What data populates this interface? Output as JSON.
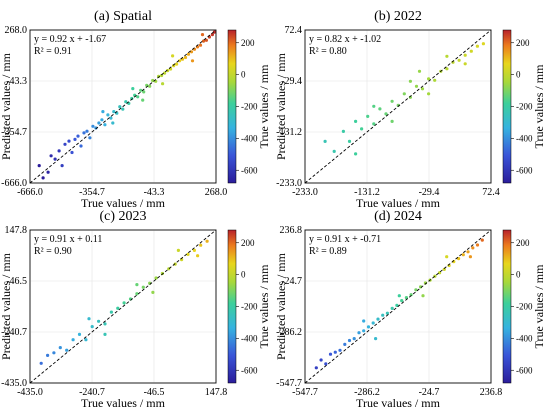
{
  "figure": {
    "panels": [
      {
        "title": "(a)  Spatial",
        "equation": "y = 0.92 x + -1.67",
        "r2": "R² = 0.91",
        "xlabel": "True values / mm",
        "ylabel": "Predicted values / mm",
        "colorbar_label": "True values / mm",
        "xticks": [
          "-666.0",
          "-354.7",
          "-43.3",
          "268.0"
        ],
        "yticks": [
          "268.0",
          "-43.3",
          "-354.7",
          "-666.0"
        ],
        "cbar_ticks": [
          "200",
          "0",
          "-200",
          "-400",
          "-600"
        ]
      },
      {
        "title": "(b)  2022",
        "equation": "y = 0.82 x + -1.02",
        "r2": "R² = 0.80",
        "xlabel": "True values / mm",
        "ylabel": "Predicted values / mm",
        "colorbar_label": "True values / mm",
        "xticks": [
          "-233.0",
          "-131.2",
          "-29.4",
          "72.4"
        ],
        "yticks": [
          "72.4",
          "-29.4",
          "-131.2",
          "-233.0"
        ],
        "cbar_ticks": [
          "200",
          "0",
          "-200",
          "-400",
          "-600"
        ]
      },
      {
        "title": "(c)  2023",
        "equation": "y = 0.91 x + 0.11",
        "r2": "R² = 0.90",
        "xlabel": "True values / mm",
        "ylabel": "Predicted values / mm",
        "colorbar_label": "True values / mm",
        "xticks": [
          "-435.0",
          "-240.7",
          "-46.5",
          "147.8"
        ],
        "yticks": [
          "147.8",
          "-46.5",
          "-240.7",
          "-435.0"
        ],
        "cbar_ticks": [
          "200",
          "0",
          "-200",
          "-400",
          "-600"
        ]
      },
      {
        "title": "(d)  2024",
        "equation": "y = 0.91 x + -0.71",
        "r2": "R² = 0.89",
        "xlabel": "True values / mm",
        "ylabel": "Predicted values / mm",
        "colorbar_label": "True values / mm",
        "xticks": [
          "-547.7",
          "-286.2",
          "-24.7",
          "236.8"
        ],
        "yticks": [
          "236.8",
          "-24.7",
          "-286.2",
          "-547.7"
        ],
        "cbar_ticks": [
          "200",
          "0",
          "-200",
          "-400",
          "-600"
        ]
      }
    ]
  },
  "chart_data": [
    {
      "type": "scatter",
      "title": "(a)  Spatial",
      "xlabel": "True values / mm",
      "ylabel": "Predicted values / mm",
      "xlim": [
        -666.0,
        268.0
      ],
      "ylim": [
        -666.0,
        268.0
      ],
      "slope": 0.92,
      "intercept": -1.67,
      "r2": 0.91,
      "points": [
        [
          -620,
          -560
        ],
        [
          -600,
          -635
        ],
        [
          -575,
          -600
        ],
        [
          -560,
          -500
        ],
        [
          -540,
          -520
        ],
        [
          -520,
          -470
        ],
        [
          -505,
          -560
        ],
        [
          -490,
          -430
        ],
        [
          -470,
          -410
        ],
        [
          -455,
          -480
        ],
        [
          -440,
          -400
        ],
        [
          -425,
          -380
        ],
        [
          -410,
          -440
        ],
        [
          -395,
          -360
        ],
        [
          -380,
          -350
        ],
        [
          -365,
          -390
        ],
        [
          -350,
          -320
        ],
        [
          -335,
          -330
        ],
        [
          -320,
          -300
        ],
        [
          -305,
          -280
        ],
        [
          -290,
          -310
        ],
        [
          -275,
          -250
        ],
        [
          -260,
          -270
        ],
        [
          -245,
          -230
        ],
        [
          -230,
          -240
        ],
        [
          -215,
          -200
        ],
        [
          -200,
          -215
        ],
        [
          -185,
          -170
        ],
        [
          -170,
          -180
        ],
        [
          -155,
          -150
        ],
        [
          -140,
          -130
        ],
        [
          -125,
          -140
        ],
        [
          -110,
          -100
        ],
        [
          -95,
          -110
        ],
        [
          -80,
          -70
        ],
        [
          -65,
          -75
        ],
        [
          -50,
          -40
        ],
        [
          -35,
          -45
        ],
        [
          -20,
          -15
        ],
        [
          -5,
          -10
        ],
        [
          10,
          5
        ],
        [
          25,
          20
        ],
        [
          40,
          30
        ],
        [
          55,
          50
        ],
        [
          70,
          60
        ],
        [
          85,
          80
        ],
        [
          100,
          90
        ],
        [
          115,
          100
        ],
        [
          130,
          120
        ],
        [
          145,
          135
        ],
        [
          160,
          150
        ],
        [
          175,
          165
        ],
        [
          190,
          175
        ],
        [
          205,
          200
        ],
        [
          220,
          205
        ],
        [
          235,
          225
        ],
        [
          250,
          240
        ],
        [
          260,
          255
        ],
        [
          -300,
          -230
        ],
        [
          -250,
          -300
        ],
        [
          -150,
          -90
        ],
        [
          -100,
          -160
        ],
        [
          0,
          -60
        ],
        [
          50,
          110
        ],
        [
          150,
          80
        ],
        [
          200,
          240
        ]
      ],
      "colorbar": {
        "label": "True values / mm",
        "ticks": [
          200,
          0,
          -200,
          -400,
          -600
        ]
      }
    },
    {
      "type": "scatter",
      "title": "(b)  2022",
      "xlabel": "True values / mm",
      "ylabel": "Predicted values / mm",
      "xlim": [
        -233.0,
        72.4
      ],
      "ylim": [
        -233.0,
        72.4
      ],
      "slope": 0.82,
      "intercept": -1.02,
      "r2": 0.8,
      "points": [
        [
          -200,
          -150
        ],
        [
          -185,
          -170
        ],
        [
          -170,
          -130
        ],
        [
          -160,
          -150
        ],
        [
          -150,
          -110
        ],
        [
          -140,
          -125
        ],
        [
          -130,
          -100
        ],
        [
          -120,
          -115
        ],
        [
          -110,
          -85
        ],
        [
          -100,
          -95
        ],
        [
          -90,
          -70
        ],
        [
          -80,
          -78
        ],
        [
          -70,
          -55
        ],
        [
          -60,
          -62
        ],
        [
          -50,
          -40
        ],
        [
          -40,
          -45
        ],
        [
          -30,
          -25
        ],
        [
          -20,
          -28
        ],
        [
          -10,
          -10
        ],
        [
          0,
          -5
        ],
        [
          10,
          8
        ],
        [
          20,
          12
        ],
        [
          30,
          22
        ],
        [
          40,
          30
        ],
        [
          50,
          40
        ],
        [
          60,
          45
        ],
        [
          -120,
          -80
        ],
        [
          -90,
          -110
        ],
        [
          -60,
          -30
        ],
        [
          -30,
          -55
        ],
        [
          0,
          20
        ],
        [
          30,
          5
        ],
        [
          -150,
          -175
        ],
        [
          -45,
          -10
        ]
      ],
      "colorbar": {
        "label": "True values / mm",
        "ticks": [
          200,
          0,
          -200,
          -400,
          -600
        ]
      }
    },
    {
      "type": "scatter",
      "title": "(c)  2023",
      "xlabel": "True values / mm",
      "ylabel": "Predicted values / mm",
      "xlim": [
        -435.0,
        147.8
      ],
      "ylim": [
        -435.0,
        147.8
      ],
      "slope": 0.91,
      "intercept": 0.11,
      "r2": 0.9,
      "points": [
        [
          -400,
          -360
        ],
        [
          -380,
          -330
        ],
        [
          -360,
          -320
        ],
        [
          -340,
          -300
        ],
        [
          -320,
          -310
        ],
        [
          -300,
          -270
        ],
        [
          -280,
          -250
        ],
        [
          -260,
          -270
        ],
        [
          -240,
          -220
        ],
        [
          -220,
          -200
        ],
        [
          -200,
          -210
        ],
        [
          -180,
          -165
        ],
        [
          -160,
          -150
        ],
        [
          -140,
          -130
        ],
        [
          -120,
          -115
        ],
        [
          -100,
          -95
        ],
        [
          -80,
          -70
        ],
        [
          -60,
          -55
        ],
        [
          -40,
          -35
        ],
        [
          -20,
          -18
        ],
        [
          0,
          0
        ],
        [
          20,
          18
        ],
        [
          40,
          35
        ],
        [
          60,
          55
        ],
        [
          80,
          70
        ],
        [
          100,
          90
        ],
        [
          120,
          105
        ],
        [
          -250,
          -190
        ],
        [
          -200,
          -250
        ],
        [
          -100,
          -60
        ],
        [
          -50,
          -90
        ],
        [
          30,
          70
        ],
        [
          90,
          50
        ]
      ],
      "colorbar": {
        "label": "True values / mm",
        "ticks": [
          200,
          0,
          -200,
          -400,
          -600
        ]
      }
    },
    {
      "type": "scatter",
      "title": "(d)  2024",
      "xlabel": "True values / mm",
      "ylabel": "Predicted values / mm",
      "xlim": [
        -547.7,
        236.8
      ],
      "ylim": [
        -547.7,
        236.8
      ],
      "slope": 0.91,
      "intercept": -0.71,
      "r2": 0.89,
      "points": [
        [
          -500,
          -470
        ],
        [
          -480,
          -430
        ],
        [
          -460,
          -450
        ],
        [
          -440,
          -400
        ],
        [
          -420,
          -390
        ],
        [
          -400,
          -380
        ],
        [
          -380,
          -350
        ],
        [
          -360,
          -330
        ],
        [
          -340,
          -320
        ],
        [
          -320,
          -290
        ],
        [
          -300,
          -280
        ],
        [
          -280,
          -260
        ],
        [
          -260,
          -240
        ],
        [
          -240,
          -220
        ],
        [
          -220,
          -200
        ],
        [
          -200,
          -190
        ],
        [
          -180,
          -165
        ],
        [
          -160,
          -150
        ],
        [
          -140,
          -125
        ],
        [
          -120,
          -110
        ],
        [
          -100,
          -95
        ],
        [
          -80,
          -70
        ],
        [
          -60,
          -55
        ],
        [
          -40,
          -35
        ],
        [
          -20,
          -20
        ],
        [
          0,
          0
        ],
        [
          20,
          18
        ],
        [
          40,
          35
        ],
        [
          60,
          55
        ],
        [
          80,
          75
        ],
        [
          100,
          90
        ],
        [
          120,
          110
        ],
        [
          140,
          125
        ],
        [
          160,
          145
        ],
        [
          180,
          160
        ],
        [
          200,
          185
        ],
        [
          -300,
          -230
        ],
        [
          -250,
          -320
        ],
        [
          -150,
          -100
        ],
        [
          -50,
          -100
        ],
        [
          50,
          100
        ],
        [
          150,
          100
        ]
      ],
      "colorbar": {
        "label": "True values / mm",
        "ticks": [
          200,
          0,
          -200,
          -400,
          -600
        ]
      }
    }
  ]
}
